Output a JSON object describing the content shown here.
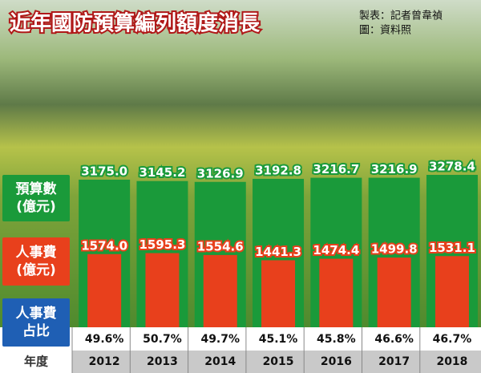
{
  "chart_data": {
    "type": "bar",
    "title": "近年國防預算編列額度消長",
    "credits": [
      "製表：記者曾韋禎",
      "圖：資料照"
    ],
    "category_label": "年度",
    "categories": [
      "2012",
      "2013",
      "2014",
      "2015",
      "2016",
      "2017",
      "2018"
    ],
    "series": [
      {
        "name": "預算數\n(億元)",
        "color": "#1a9a3a",
        "values": [
          3175.0,
          3145.2,
          3126.9,
          3192.8,
          3216.7,
          3216.9,
          3278.4
        ],
        "value_labels": [
          "3175.0",
          "3145.2",
          "3126.9",
          "3192.8",
          "3216.7",
          "3216.9",
          "3278.4"
        ]
      },
      {
        "name": "人事費\n(億元)",
        "color": "#e8401c",
        "values": [
          1574.0,
          1595.3,
          1554.6,
          1441.3,
          1474.4,
          1499.8,
          1531.1
        ],
        "value_labels": [
          "1574.0",
          "1595.3",
          "1554.6",
          "1441.3",
          "1474.4",
          "1499.8",
          "1531.1"
        ]
      }
    ],
    "share": {
      "name": "人事費\n占比",
      "color": "#1f5fb4",
      "values": [
        49.6,
        50.7,
        49.7,
        45.1,
        45.8,
        46.6,
        46.7
      ],
      "value_labels": [
        "49.6%",
        "50.7%",
        "49.7%",
        "45.1%",
        "45.8%",
        "46.6%",
        "46.7%"
      ]
    }
  }
}
